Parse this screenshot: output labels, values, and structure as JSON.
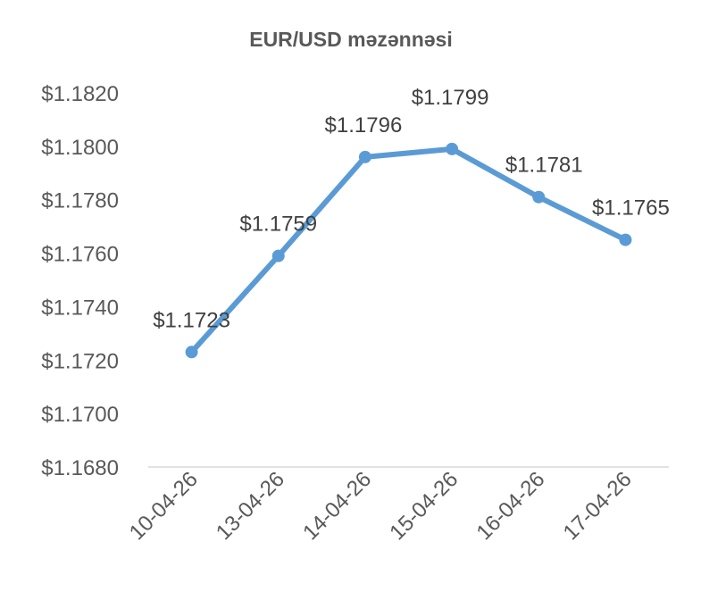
{
  "chart_data": {
    "type": "line",
    "title": "EUR/USD məzənnəsi",
    "categories": [
      "10-04-26",
      "13-04-26",
      "14-04-26",
      "15-04-26",
      "16-04-26",
      "17-04-26"
    ],
    "series": [
      {
        "values": [
          1.1723,
          1.1759,
          1.1796,
          1.1799,
          1.1781,
          1.1765
        ],
        "data_labels": [
          "$1.1723",
          "$1.1759",
          "$1.1796",
          "$1.1799",
          "$1.1781",
          "$1.1765"
        ],
        "color": "#5B9BD5"
      }
    ],
    "ylim": [
      1.168,
      1.182
    ],
    "yticks": [
      1.168,
      1.17,
      1.172,
      1.174,
      1.176,
      1.178,
      1.18,
      1.182
    ],
    "ytick_labels": [
      "$1.1680",
      "$1.1700",
      "$1.1720",
      "$1.1740",
      "$1.1760",
      "$1.1780",
      "$1.1800",
      "$1.1820"
    ],
    "grid": false,
    "axis_color": "#D9D9D9"
  }
}
